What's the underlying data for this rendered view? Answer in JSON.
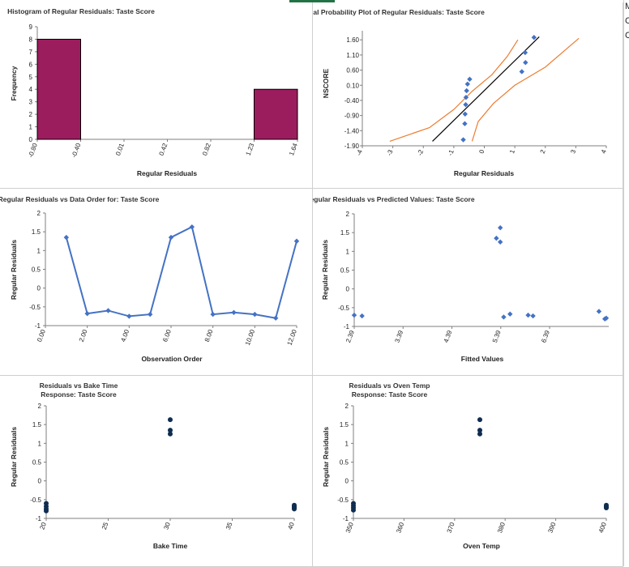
{
  "sheet": {
    "right_column_letters": [
      "M",
      "C",
      "C"
    ]
  },
  "chart_data": [
    {
      "id": "histogram",
      "type": "bar",
      "title": "Histogram of Regular Residuals: Taste Score",
      "xlabel": "Regular Residuals",
      "ylabel": "Frequency",
      "xticks": [
        "-0.80",
        "-0.40",
        "0.01",
        "0.42",
        "0.82",
        "1.23",
        "1.64"
      ],
      "yticks": [
        0,
        1,
        2,
        3,
        4,
        5,
        6,
        7,
        8,
        9
      ],
      "ylim": [
        0,
        9
      ],
      "bins": [
        {
          "from": "-0.80",
          "to": "-0.40",
          "value": 8
        },
        {
          "from": "1.23",
          "to": "1.64",
          "value": 4
        }
      ],
      "bar_color": "#9B1D5E"
    },
    {
      "id": "normal-probability",
      "type": "scatter",
      "title": "Normal Probability Plot of Regular Residuals: Taste Score",
      "xlabel": "Regular Residuals",
      "ylabel": "NSCORE",
      "xlim": [
        -4,
        4
      ],
      "ylim": [
        -1.9,
        1.9
      ],
      "xticks": [
        "-4",
        "-3",
        "-2",
        "-1",
        "0",
        "1",
        "2",
        "3",
        "4"
      ],
      "yticks": [
        "1.60",
        "1.10",
        "0.60",
        "0.10",
        "-0.40",
        "-0.90",
        "-1.40",
        "-1.90"
      ],
      "points": [
        [
          -0.69,
          -1.7
        ],
        [
          -0.64,
          -1.17
        ],
        [
          -0.63,
          -0.85
        ],
        [
          -0.61,
          -0.54
        ],
        [
          -0.6,
          -0.3
        ],
        [
          -0.58,
          -0.08
        ],
        [
          -0.55,
          0.14
        ],
        [
          -0.48,
          0.3
        ],
        [
          1.23,
          0.55
        ],
        [
          1.35,
          0.85
        ],
        [
          1.34,
          1.18
        ],
        [
          1.63,
          1.68
        ]
      ],
      "fit_line": [
        [
          -1.7,
          -1.75
        ],
        [
          1.8,
          1.7
        ]
      ],
      "upper_band": [
        [
          -3.1,
          -1.75
        ],
        [
          -1.8,
          -1.3
        ],
        [
          -1.0,
          -0.7
        ],
        [
          -0.4,
          -0.1
        ],
        [
          0.25,
          0.45
        ],
        [
          0.75,
          1.05
        ],
        [
          1.1,
          1.6
        ]
      ],
      "lower_band": [
        [
          -0.4,
          -1.75
        ],
        [
          -0.2,
          -1.1
        ],
        [
          0.3,
          -0.5
        ],
        [
          1.0,
          0.1
        ],
        [
          2.0,
          0.7
        ],
        [
          3.1,
          1.65
        ]
      ],
      "point_color": "#4472C4",
      "line_color": "#000000",
      "band_color": "#ED7D31"
    },
    {
      "id": "residuals-vs-order",
      "type": "line",
      "title": "Regular Residuals vs Data Order for: Taste Score",
      "xlabel": "Observation Order",
      "ylabel": "Regular Residuals",
      "xlim": [
        0,
        12
      ],
      "ylim": [
        -1,
        2
      ],
      "xticks": [
        "0.00",
        "2.00",
        "4.00",
        "6.00",
        "8.00",
        "10.00",
        "12.00"
      ],
      "yticks": [
        "2",
        "1.5",
        "1",
        "0.5",
        "0",
        "-0.5",
        "-1"
      ],
      "x": [
        1,
        2,
        3,
        4,
        5,
        6,
        7,
        8,
        9,
        10,
        11,
        12
      ],
      "values": [
        1.35,
        -0.68,
        -0.6,
        -0.75,
        -0.7,
        1.35,
        1.63,
        -0.7,
        -0.65,
        -0.7,
        -0.8,
        1.25
      ],
      "color": "#4472C4"
    },
    {
      "id": "residuals-vs-fitted",
      "type": "scatter",
      "title": "Regular Residuals vs Predicted Values: Taste Score",
      "xlabel": "Fitted Values",
      "ylabel": "Regular Residuals",
      "xlim": [
        2.39,
        7.6
      ],
      "ylim": [
        -1,
        2
      ],
      "xticks": [
        "2.39",
        "3.39",
        "4.39",
        "5.39",
        "6.39"
      ],
      "yticks": [
        "2",
        "1.5",
        "1",
        "0.5",
        "0",
        "-0.5",
        "-1"
      ],
      "points": [
        [
          2.39,
          -0.7
        ],
        [
          2.55,
          -0.72
        ],
        [
          5.3,
          1.35
        ],
        [
          5.38,
          1.63
        ],
        [
          5.38,
          1.25
        ],
        [
          5.45,
          -0.75
        ],
        [
          5.58,
          -0.67
        ],
        [
          5.95,
          -0.7
        ],
        [
          6.05,
          -0.72
        ],
        [
          7.4,
          -0.6
        ],
        [
          7.52,
          -0.8
        ],
        [
          7.55,
          -0.78
        ]
      ],
      "color": "#4472C4"
    },
    {
      "id": "residuals-vs-bake-time",
      "type": "scatter",
      "title": "Residuals vs Bake Time",
      "subtitle": "Response: Taste Score",
      "xlabel": "Bake Time",
      "ylabel": "Regular Residuals",
      "xlim": [
        20,
        40
      ],
      "ylim": [
        -1,
        2
      ],
      "xticks": [
        "20",
        "25",
        "30",
        "35",
        "40"
      ],
      "yticks": [
        "2",
        "1.5",
        "1",
        "0.5",
        "0",
        "-0.5",
        "-1"
      ],
      "points": [
        [
          20,
          -0.6
        ],
        [
          20,
          -0.68
        ],
        [
          20,
          -0.75
        ],
        [
          20,
          -0.8
        ],
        [
          30,
          1.63
        ],
        [
          30,
          1.35
        ],
        [
          30,
          1.25
        ],
        [
          40,
          -0.65
        ],
        [
          40,
          -0.7
        ],
        [
          40,
          -0.72
        ],
        [
          40,
          -0.75
        ],
        [
          40,
          -0.68
        ]
      ],
      "color": "#0F2D4F"
    },
    {
      "id": "residuals-vs-oven-temp",
      "type": "scatter",
      "title": "Residuals vs Oven Temp",
      "subtitle": "Response: Taste Score",
      "xlabel": "Oven Temp",
      "ylabel": "Regular Residuals",
      "xlim": [
        350,
        400
      ],
      "ylim": [
        -1,
        2
      ],
      "xticks": [
        "350",
        "360",
        "370",
        "380",
        "390",
        "400"
      ],
      "yticks": [
        "2",
        "1.5",
        "1",
        "0.5",
        "0",
        "-0.5",
        "-1"
      ],
      "points": [
        [
          350,
          -0.6
        ],
        [
          350,
          -0.66
        ],
        [
          350,
          -0.72
        ],
        [
          350,
          -0.78
        ],
        [
          375,
          1.63
        ],
        [
          375,
          1.35
        ],
        [
          375,
          1.25
        ],
        [
          400,
          -0.65
        ],
        [
          400,
          -0.7
        ],
        [
          400,
          -0.72
        ],
        [
          400,
          -0.68
        ]
      ],
      "color": "#0F2D4F"
    }
  ]
}
